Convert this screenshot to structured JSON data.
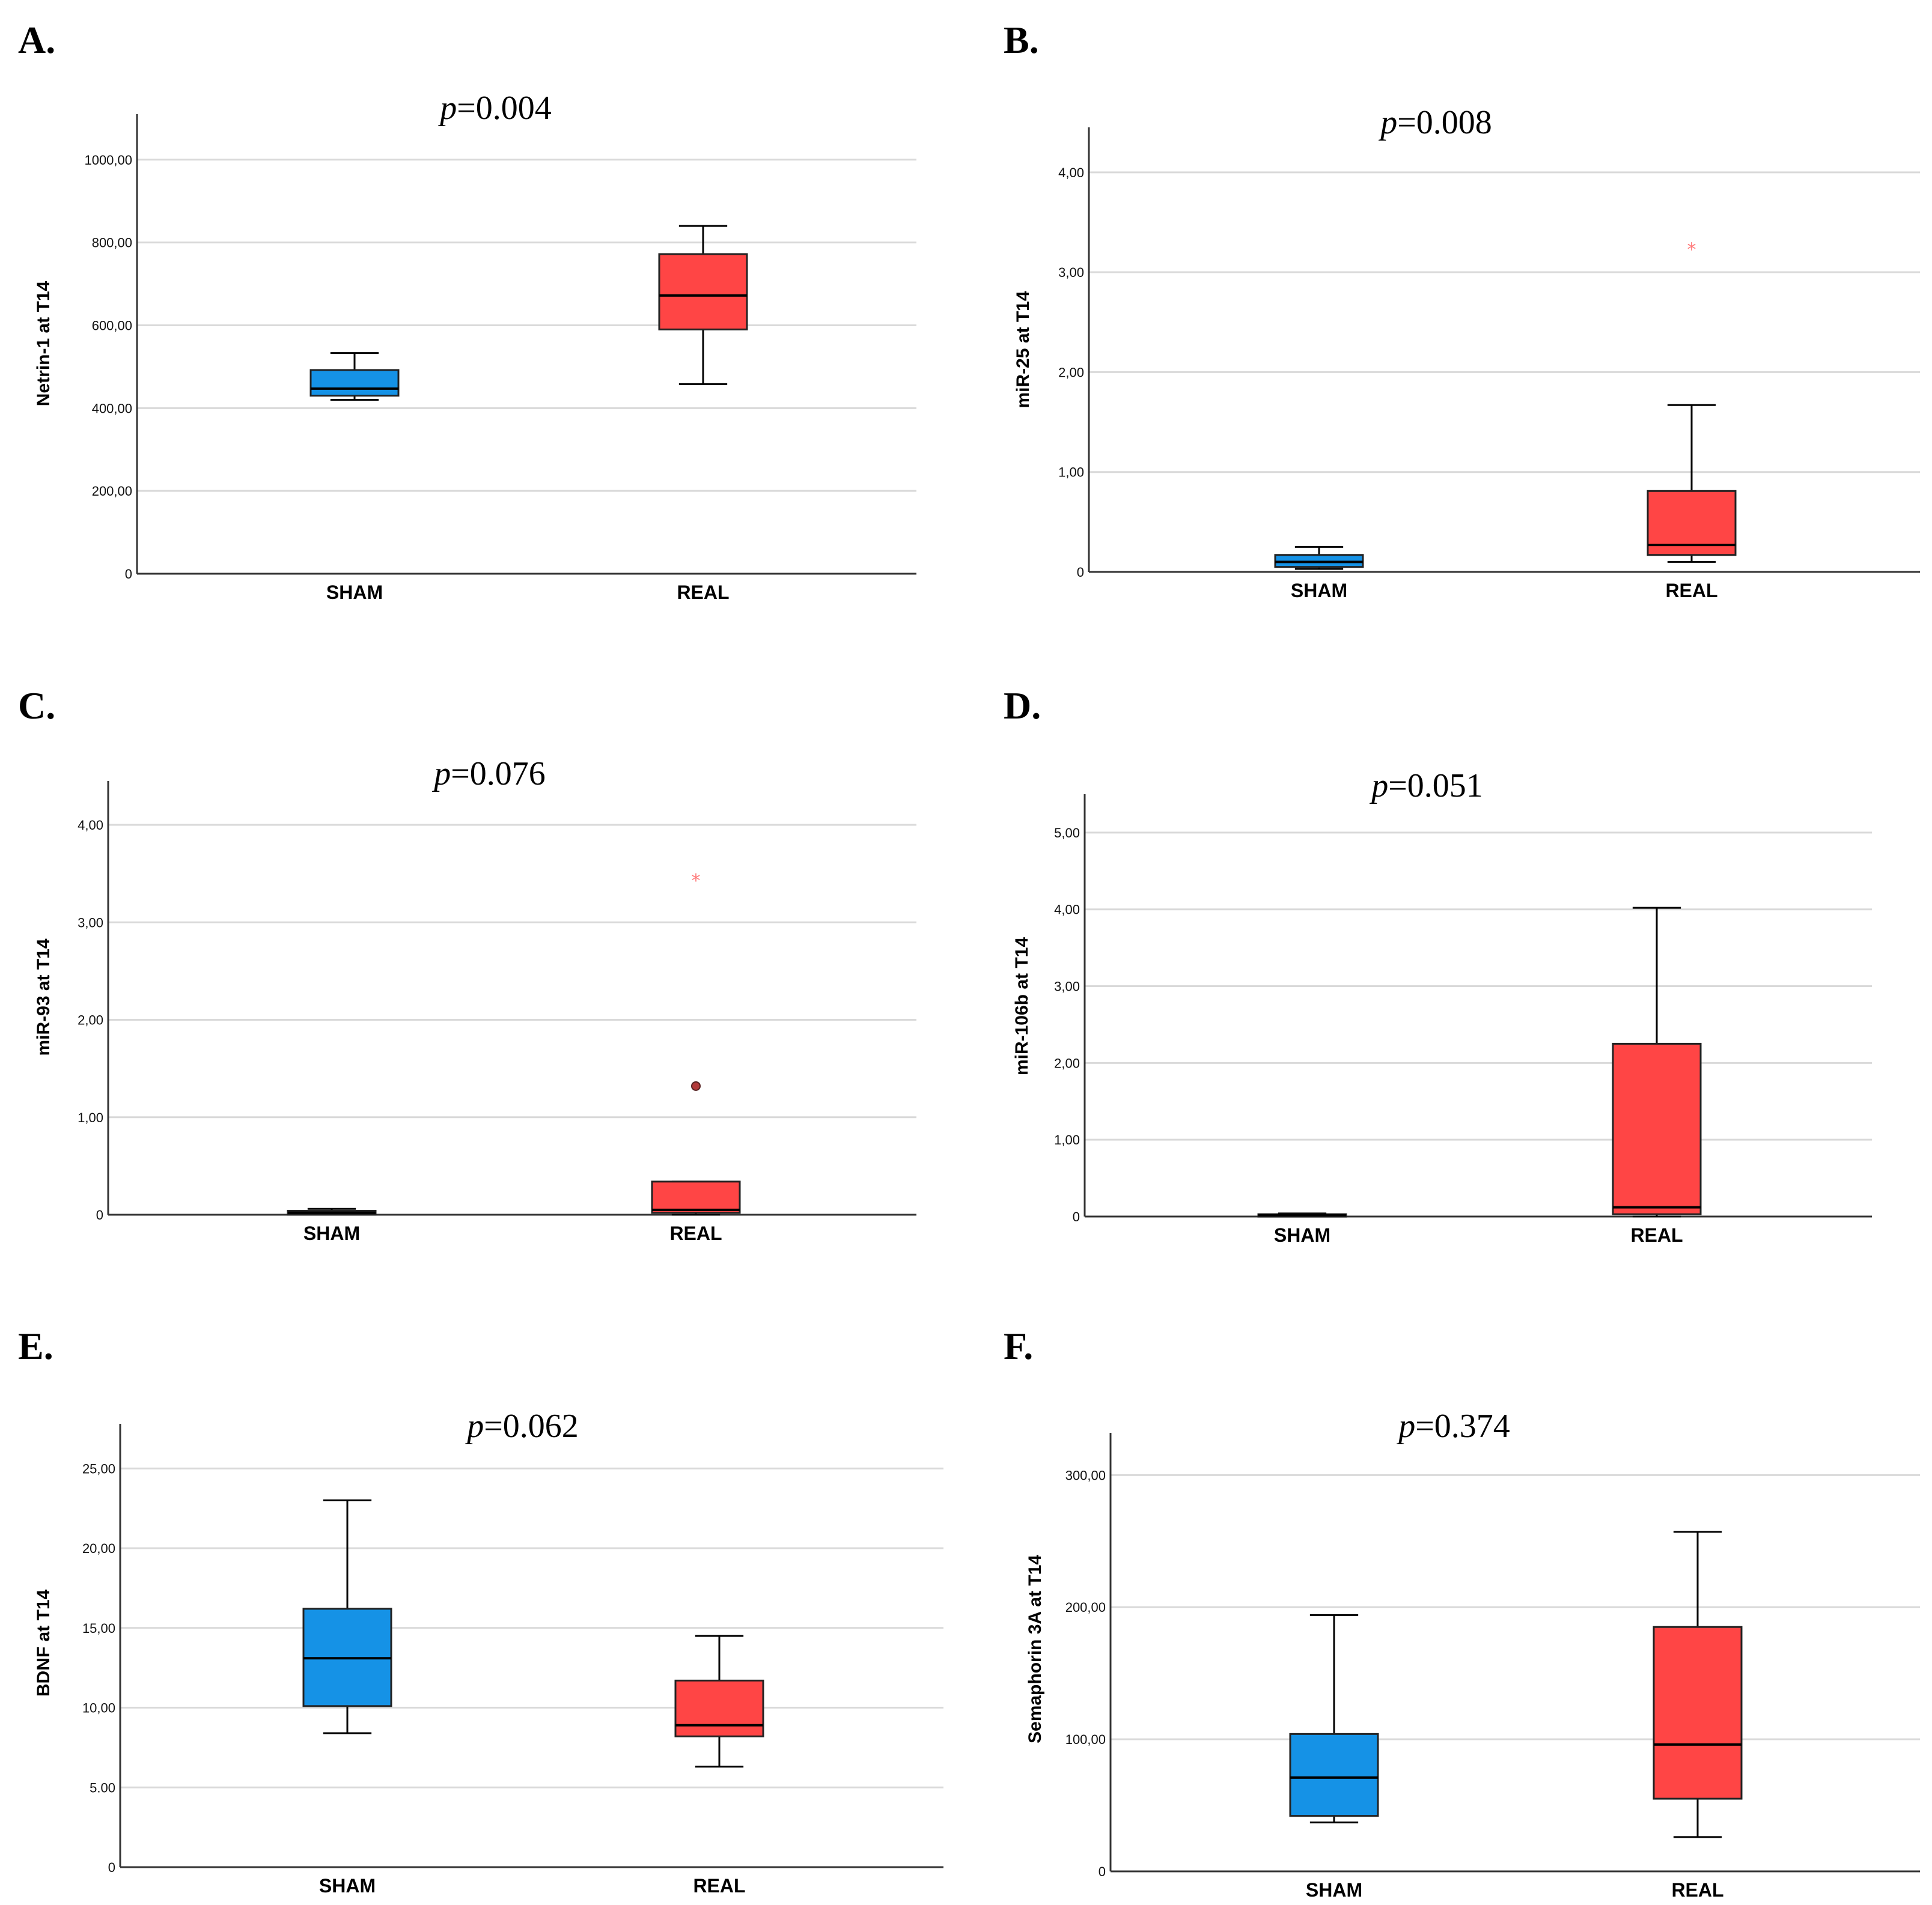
{
  "colors": {
    "sham": "#1592e6",
    "real": "#ff4545",
    "grid": "#d9d9d9",
    "axis": "#333333",
    "outlier_star": "#ff7777",
    "outlier_circle": "#b23a3a"
  },
  "chart_data": [
    {
      "panel": "A.",
      "type": "boxplot",
      "title_prefix": "p",
      "title_suffix": "=0.004",
      "ylabel": "Netrin-1 at T14",
      "yticks": [
        0,
        200,
        400,
        600,
        800,
        1000
      ],
      "ytick_labels": [
        "0",
        "200,00",
        "400,00",
        "600,00",
        "800,00",
        "1000,00"
      ],
      "ylim": [
        0,
        1110
      ],
      "categories": [
        "SHAM",
        "REAL"
      ],
      "boxes": [
        {
          "group": "SHAM",
          "min": 420,
          "q1": 430,
          "median": 447,
          "q3": 492,
          "max": 533,
          "outliers": []
        },
        {
          "group": "REAL",
          "min": 458,
          "q1": 590,
          "median": 672,
          "q3": 772,
          "max": 840,
          "outliers": []
        }
      ]
    },
    {
      "panel": "B.",
      "type": "boxplot",
      "title_prefix": "p",
      "title_suffix": "=0.008",
      "ylabel": "miR-25 at T14",
      "yticks": [
        0,
        1,
        2,
        3,
        4
      ],
      "ytick_labels": [
        "0",
        "1,00",
        "2,00",
        "3,00",
        "4,00"
      ],
      "ylim": [
        0,
        4.45
      ],
      "categories": [
        "SHAM",
        "REAL"
      ],
      "boxes": [
        {
          "group": "SHAM",
          "min": 0.03,
          "q1": 0.05,
          "median": 0.1,
          "q3": 0.17,
          "max": 0.25,
          "outliers": []
        },
        {
          "group": "REAL",
          "min": 0.1,
          "q1": 0.17,
          "median": 0.27,
          "q3": 0.81,
          "max": 1.67,
          "outliers": [
            {
              "value": 3.25,
              "kind": "star"
            }
          ]
        }
      ]
    },
    {
      "panel": "C.",
      "type": "boxplot",
      "title_prefix": "p",
      "title_suffix": "=0.076",
      "ylabel": "miR-93 at T14",
      "yticks": [
        0,
        1,
        2,
        3,
        4
      ],
      "ytick_labels": [
        "0",
        "1,00",
        "2,00",
        "3,00",
        "4,00"
      ],
      "ylim": [
        0,
        4.45
      ],
      "categories": [
        "SHAM",
        "REAL"
      ],
      "boxes": [
        {
          "group": "SHAM",
          "min": 0.0,
          "q1": 0.0,
          "median": 0.02,
          "q3": 0.04,
          "max": 0.06,
          "outliers": []
        },
        {
          "group": "REAL",
          "min": 0.0,
          "q1": 0.02,
          "median": 0.05,
          "q3": 0.34,
          "max": 0.34,
          "outliers": [
            {
              "value": 1.32,
              "kind": "circle"
            },
            {
              "value": 3.45,
              "kind": "star"
            }
          ]
        }
      ]
    },
    {
      "panel": "D.",
      "type": "boxplot",
      "title_prefix": "p",
      "title_suffix": "=0.051",
      "ylabel": "miR-106b at T14",
      "yticks": [
        0,
        1,
        2,
        3,
        4,
        5
      ],
      "ytick_labels": [
        "0",
        "1,00",
        "2,00",
        "3,00",
        "4,00",
        "5,00"
      ],
      "ylim": [
        0,
        5.5
      ],
      "categories": [
        "SHAM",
        "REAL"
      ],
      "boxes": [
        {
          "group": "SHAM",
          "min": 0.0,
          "q1": 0.01,
          "median": 0.02,
          "q3": 0.03,
          "max": 0.04,
          "outliers": []
        },
        {
          "group": "REAL",
          "min": 0.0,
          "q1": 0.03,
          "median": 0.12,
          "q3": 2.25,
          "max": 4.02,
          "outliers": []
        }
      ]
    },
    {
      "panel": "E.",
      "type": "boxplot",
      "title_prefix": "p",
      "title_suffix": "=0.062",
      "ylabel": "BDNF at T14",
      "yticks": [
        0,
        5,
        10,
        15,
        20,
        25
      ],
      "ytick_labels": [
        "0",
        "5.00",
        "10,00",
        "15,00",
        "20,00",
        "25,00"
      ],
      "ylim": [
        0,
        27.8
      ],
      "categories": [
        "SHAM",
        "REAL"
      ],
      "boxes": [
        {
          "group": "SHAM",
          "min": 8.4,
          "q1": 10.1,
          "median": 13.1,
          "q3": 16.2,
          "max": 23.0,
          "outliers": []
        },
        {
          "group": "REAL",
          "min": 6.3,
          "q1": 8.2,
          "median": 8.9,
          "q3": 11.7,
          "max": 14.5,
          "outliers": []
        }
      ]
    },
    {
      "panel": "F.",
      "type": "boxplot",
      "title_prefix": "p",
      "title_suffix": "=0.374",
      "ylabel": "Semaphorin 3A at T14",
      "yticks": [
        0,
        100,
        200,
        300
      ],
      "ytick_labels": [
        "0",
        "100,00",
        "200,00",
        "300,00"
      ],
      "ylim": [
        0,
        332
      ],
      "categories": [
        "SHAM",
        "REAL"
      ],
      "boxes": [
        {
          "group": "SHAM",
          "min": 37,
          "q1": 42,
          "median": 71,
          "q3": 104,
          "max": 194,
          "outliers": []
        },
        {
          "group": "REAL",
          "min": 26,
          "q1": 55,
          "median": 96,
          "q3": 185,
          "max": 257,
          "outliers": []
        }
      ]
    }
  ]
}
